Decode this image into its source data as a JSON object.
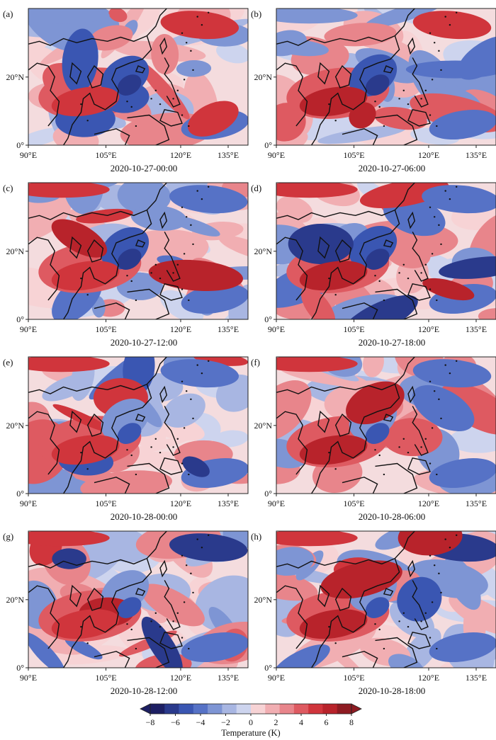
{
  "figure": {
    "panels": [
      {
        "label": "(a)",
        "time": "2020-10-27-00:00"
      },
      {
        "label": "(b)",
        "time": "2020-10-27-06:00"
      },
      {
        "label": "(c)",
        "time": "2020-10-27-12:00"
      },
      {
        "label": "(d)",
        "time": "2020-10-27-18:00"
      },
      {
        "label": "(e)",
        "time": "2020-10-28-00:00"
      },
      {
        "label": "(f)",
        "time": "2020-10-28-06:00"
      },
      {
        "label": "(g)",
        "time": "2020-10-28-12:00"
      },
      {
        "label": "(h)",
        "time": "2020-10-28-18:00"
      }
    ],
    "lon_ticks": [
      "90°E",
      "105°E",
      "120°E",
      "135°E"
    ],
    "lat_ticks": [
      "20°N",
      "0°"
    ],
    "colorbar": {
      "title": "Temperature (K)",
      "ticks": [
        "−8",
        "−6",
        "−4",
        "−2",
        "0",
        "2",
        "4",
        "6",
        "8"
      ],
      "range": [
        -8,
        8
      ],
      "colors": [
        "#1d1f63",
        "#2a3a8c",
        "#3a56b2",
        "#5672c6",
        "#7e95d4",
        "#a8b6e2",
        "#cdd4ee",
        "#f7d3d5",
        "#f1aeb2",
        "#e8858b",
        "#de5a61",
        "#d0353c",
        "#b8232b",
        "#8e1b22"
      ]
    }
  }
}
